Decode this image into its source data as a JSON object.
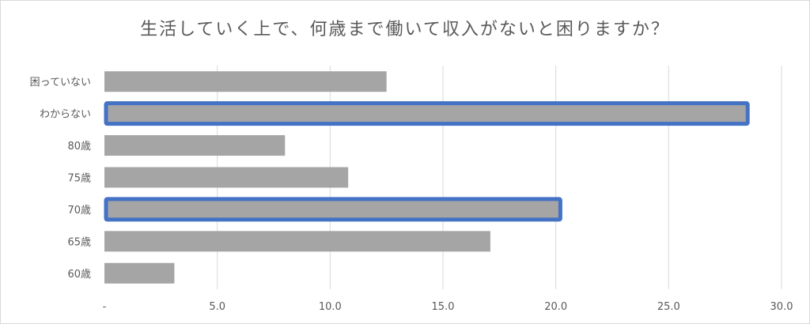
{
  "chart_data": {
    "type": "bar",
    "orientation": "horizontal",
    "title": "生活していく上で、何歳まで働いて収入がないと困りますか？",
    "categories": [
      "困っていない",
      "わからない",
      "80歳",
      "75歳",
      "70歳",
      "65歳",
      "60歳"
    ],
    "values": [
      12.5,
      28.5,
      8.0,
      10.8,
      20.2,
      17.1,
      3.1
    ],
    "highlighted": [
      "わからない",
      "70歳"
    ],
    "xlim": [
      0,
      30
    ],
    "xticks": [
      0,
      5,
      10,
      15,
      20,
      25,
      30
    ],
    "xtick_labels": [
      "-",
      "5.0",
      "10.0",
      "15.0",
      "20.0",
      "25.0",
      "30.0"
    ],
    "xlabel": "",
    "ylabel": "",
    "grid": "vertical",
    "legend": "none",
    "colors": {
      "bar": "#a5a5a5",
      "highlight_border": "#4472c4",
      "grid": "#d9d9d9",
      "text": "#595959"
    }
  }
}
